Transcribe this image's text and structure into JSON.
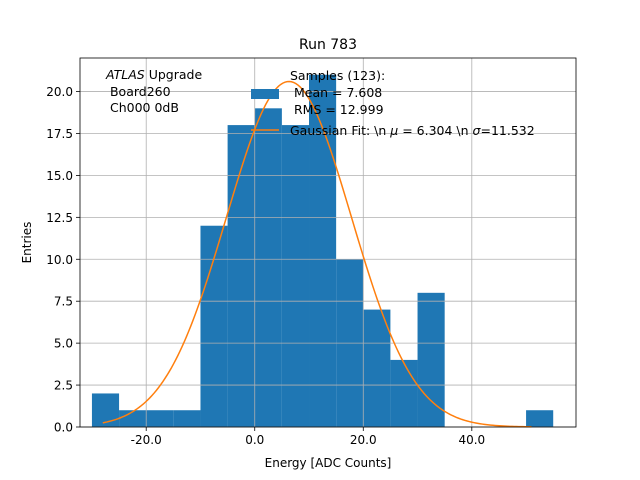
{
  "chart_data": {
    "type": "bar",
    "title": "Run 783",
    "xlabel": "Energy [ADC Counts]",
    "ylabel": "Entries",
    "xlim": [
      -32.2,
      59.2
    ],
    "ylim": [
      0,
      22
    ],
    "grid": true,
    "x_ticks": [
      -20,
      0,
      20,
      40
    ],
    "x_tick_labels": [
      "-20.0",
      "0.0",
      "20.0",
      "40.0"
    ],
    "y_ticks": [
      0,
      2.5,
      5,
      7.5,
      10,
      12.5,
      15,
      17.5,
      20
    ],
    "y_tick_labels": [
      "0.0",
      "2.5",
      "5.0",
      "7.5",
      "10.0",
      "12.5",
      "15.0",
      "17.5",
      "20.0"
    ],
    "annotation": {
      "atlas": "ATLAS",
      "upgrade": " Upgrade",
      "lines": [
        " Board260",
        " Ch000 0dB"
      ]
    },
    "histogram": {
      "name_lines": [
        "Samples (123):",
        " Mean = 7.608",
        " RMS = 12.999"
      ],
      "color": "#1f77b4",
      "bins": [
        {
          "x0": -30,
          "x1": -25,
          "value": 2
        },
        {
          "x0": -25,
          "x1": -20,
          "value": 1
        },
        {
          "x0": -20,
          "x1": -15,
          "value": 1
        },
        {
          "x0": -15,
          "x1": -10,
          "value": 1
        },
        {
          "x0": -10,
          "x1": -5,
          "value": 12
        },
        {
          "x0": -5,
          "x1": 0,
          "value": 18
        },
        {
          "x0": 0,
          "x1": 5,
          "value": 19
        },
        {
          "x0": 5,
          "x1": 10,
          "value": 18
        },
        {
          "x0": 10,
          "x1": 15,
          "value": 21
        },
        {
          "x0": 15,
          "x1": 20,
          "value": 10
        },
        {
          "x0": 20,
          "x1": 25,
          "value": 7
        },
        {
          "x0": 25,
          "x1": 30,
          "value": 4
        },
        {
          "x0": 30,
          "x1": 35,
          "value": 8
        },
        {
          "x0": 35,
          "x1": 40,
          "value": 0
        },
        {
          "x0": 40,
          "x1": 45,
          "value": 0
        },
        {
          "x0": 45,
          "x1": 50,
          "value": 0
        },
        {
          "x0": 50,
          "x1": 55,
          "value": 1
        }
      ]
    },
    "fit": {
      "name": "Gaussian Fit: \\n $\\mu$ = 6.304 \\n $\\sigma$=11.532",
      "name_prefix": "Gaussian Fit: \\n ",
      "mu_symbol": "μ",
      "mu_text": " = 6.304 \\n ",
      "sigma_symbol": "σ",
      "sigma_text": "=11.532",
      "color": "#ff7f0e",
      "mu": 6.304,
      "sigma": 11.532,
      "amplitude": 20.6,
      "x_range": [
        -28,
        51
      ]
    }
  }
}
